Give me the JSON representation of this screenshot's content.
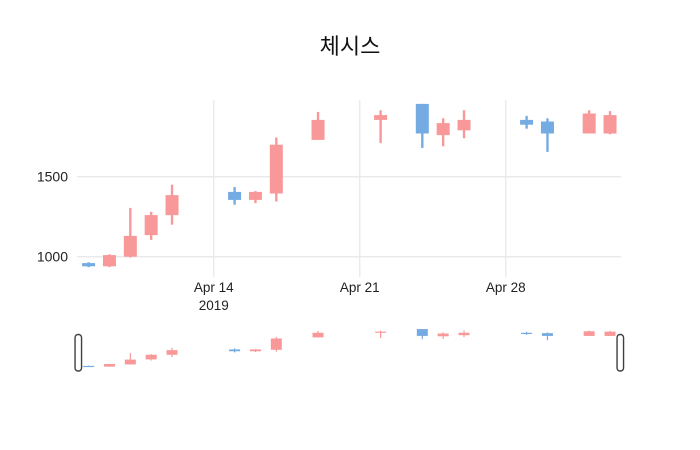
{
  "title": "체시스",
  "colors": {
    "increasing": "#f89898",
    "decreasing": "#74abe2",
    "grid": "#e9e9e9",
    "tick_text": "#222222",
    "title_text": "#111111",
    "handle_border": "#404040",
    "background": "#ffffff"
  },
  "y_axis": {
    "ticks": [
      {
        "label": "1500",
        "value": 1500
      },
      {
        "label": "1000",
        "value": 1000
      }
    ]
  },
  "x_axis": {
    "ticks": [
      {
        "label": "Apr 14",
        "sublabel": "2019",
        "date": "2019-04-14"
      },
      {
        "label": "Apr 21",
        "sublabel": "",
        "date": "2019-04-21"
      },
      {
        "label": "Apr 28",
        "sublabel": "",
        "date": "2019-04-28"
      }
    ]
  },
  "rangeslider": {
    "visible": true,
    "selected_range": [
      "2019-04-07",
      "2019-05-04"
    ]
  },
  "chart_data": {
    "type": "candlestick",
    "title": "체시스",
    "xlabel": "",
    "ylabel": "",
    "xlim": [
      "2019-04-07",
      "2019-05-04"
    ],
    "ylim": [
      873,
      1979
    ],
    "grid": true,
    "legend": false,
    "up_color": "#f89898",
    "down_color": "#74abe2",
    "x": [
      "2019-04-08",
      "2019-04-09",
      "2019-04-10",
      "2019-04-11",
      "2019-04-12",
      "2019-04-15",
      "2019-04-16",
      "2019-04-17",
      "2019-04-19",
      "2019-04-22",
      "2019-04-24",
      "2019-04-25",
      "2019-04-26",
      "2019-04-29",
      "2019-04-30",
      "2019-05-02",
      "2019-05-03"
    ],
    "ohlc": [
      {
        "date": "2019-04-08",
        "open": 960,
        "high": 965,
        "low": 935,
        "close": 940
      },
      {
        "date": "2019-04-09",
        "open": 940,
        "high": 1015,
        "low": 935,
        "close": 1010
      },
      {
        "date": "2019-04-10",
        "open": 1000,
        "high": 1305,
        "low": 995,
        "close": 1130
      },
      {
        "date": "2019-04-11",
        "open": 1135,
        "high": 1280,
        "low": 1105,
        "close": 1260
      },
      {
        "date": "2019-04-12",
        "open": 1260,
        "high": 1450,
        "low": 1200,
        "close": 1385
      },
      {
        "date": "2019-04-15",
        "open": 1405,
        "high": 1435,
        "low": 1325,
        "close": 1355
      },
      {
        "date": "2019-04-16",
        "open": 1355,
        "high": 1410,
        "low": 1335,
        "close": 1405
      },
      {
        "date": "2019-04-17",
        "open": 1395,
        "high": 1745,
        "low": 1345,
        "close": 1700
      },
      {
        "date": "2019-04-19",
        "open": 1730,
        "high": 1905,
        "low": 1730,
        "close": 1855
      },
      {
        "date": "2019-04-22",
        "open": 1855,
        "high": 1915,
        "low": 1710,
        "close": 1885
      },
      {
        "date": "2019-04-24",
        "open": 1955,
        "high": 1955,
        "low": 1680,
        "close": 1770
      },
      {
        "date": "2019-04-25",
        "open": 1760,
        "high": 1865,
        "low": 1690,
        "close": 1835
      },
      {
        "date": "2019-04-26",
        "open": 1790,
        "high": 1915,
        "low": 1740,
        "close": 1855
      },
      {
        "date": "2019-04-29",
        "open": 1855,
        "high": 1880,
        "low": 1800,
        "close": 1825
      },
      {
        "date": "2019-04-30",
        "open": 1845,
        "high": 1865,
        "low": 1655,
        "close": 1770
      },
      {
        "date": "2019-05-02",
        "open": 1770,
        "high": 1915,
        "low": 1770,
        "close": 1895
      },
      {
        "date": "2019-05-03",
        "open": 1770,
        "high": 1910,
        "low": 1765,
        "close": 1885
      }
    ]
  }
}
